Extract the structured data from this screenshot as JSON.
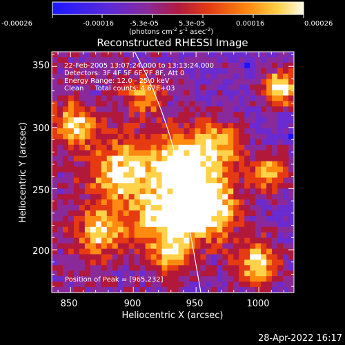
{
  "colorbar": {
    "tick_labels": [
      "-0.00026",
      "-0.00016",
      "-5.3e-05",
      "5.3e-05",
      "0.00016",
      "0.00026"
    ],
    "unit_label": "(photons cm",
    "unit_exp1": "-2",
    "unit_mid": " s",
    "unit_exp2": "-1",
    "unit_end": " asec",
    "unit_exp3": "-2",
    "unit_close": ")",
    "range": [
      -0.00026,
      0.00026
    ]
  },
  "plot": {
    "title": "Reconstructed RHESSI Image",
    "xlabel": "Heliocentric X (arcsec)",
    "ylabel": "Heliocentric Y (arcsec)",
    "x_ticks": [
      "850",
      "900",
      "950",
      "1000"
    ],
    "y_ticks": [
      "200",
      "250",
      "300",
      "350"
    ],
    "x_range": [
      835,
      1028
    ],
    "y_range": [
      165,
      362
    ],
    "annotations": [
      "22-Feb-2005 13:07:24.000 to 13:13:24.000",
      "Detectors: 3F 4F 5F 6F 7F 8F, Att 0",
      "Energy Range: 12.0 - 25.0 keV",
      "Clean     Total counts: 4.67E+03"
    ],
    "peak_label": "Position of Peak = [965,232]",
    "limb_color": "#ffffff"
  },
  "footer": {
    "timestamp": "28-Apr-2022 16:17"
  },
  "colors": {
    "background": "#000000",
    "palette": [
      "#1a14ff",
      "#6a2bd0",
      "#8a2a9a",
      "#b2183a",
      "#e53a12",
      "#ff8a10",
      "#ffd24a",
      "#ffffff"
    ]
  }
}
